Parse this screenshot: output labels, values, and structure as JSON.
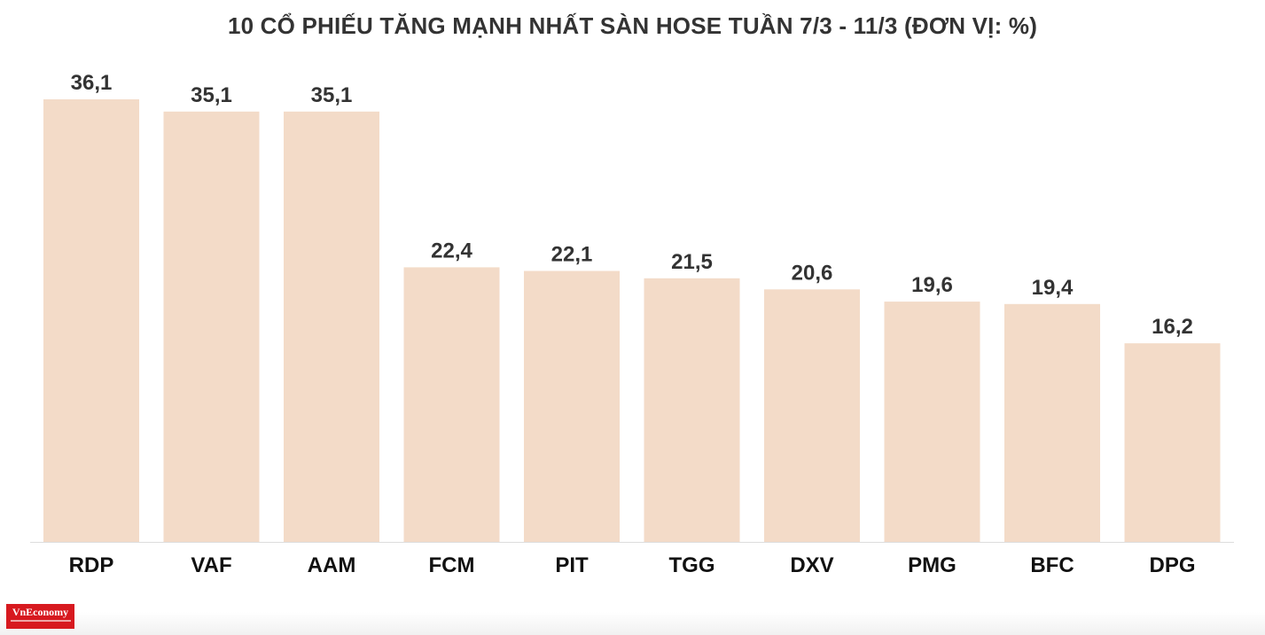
{
  "chart_data": {
    "type": "bar",
    "title": "10 CỔ PHIẾU TĂNG MẠNH NHẤT SÀN HOSE TUẦN 7/3 - 11/3 (ĐƠN VỊ: %)",
    "categories": [
      "RDP",
      "VAF",
      "AAM",
      "FCM",
      "PIT",
      "TGG",
      "DXV",
      "PMG",
      "BFC",
      "DPG"
    ],
    "values": [
      36.1,
      35.1,
      35.1,
      22.4,
      22.1,
      21.5,
      20.6,
      19.6,
      19.4,
      16.2
    ],
    "value_labels": [
      "36,1",
      "35,1",
      "35,1",
      "22,4",
      "22,1",
      "21,5",
      "20,6",
      "19,6",
      "19,4",
      "16,2"
    ],
    "xlabel": "",
    "ylabel": "",
    "ylim": [
      0,
      36.1
    ],
    "grid": false,
    "legend": "none",
    "bar_color": "#f3dbc8",
    "axis_color": "#dddddd"
  },
  "branding": {
    "logo_text": "VnEconomy",
    "logo_color": "#d7191f"
  }
}
